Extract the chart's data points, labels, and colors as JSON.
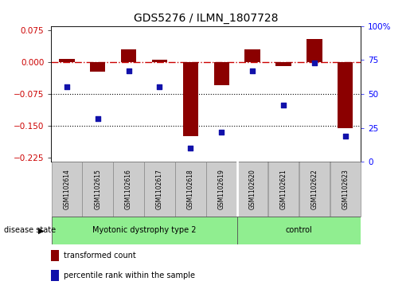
{
  "title": "GDS5276 / ILMN_1807728",
  "samples": [
    "GSM1102614",
    "GSM1102615",
    "GSM1102616",
    "GSM1102617",
    "GSM1102618",
    "GSM1102619",
    "GSM1102620",
    "GSM1102621",
    "GSM1102622",
    "GSM1102623"
  ],
  "red_values": [
    0.008,
    -0.022,
    0.03,
    0.005,
    -0.175,
    -0.055,
    0.03,
    -0.01,
    0.055,
    -0.155
  ],
  "blue_values": [
    55,
    32,
    67,
    55,
    10,
    22,
    67,
    42,
    73,
    19
  ],
  "group1_label": "Myotonic dystrophy type 2",
  "group1_count": 6,
  "group2_label": "control",
  "group2_count": 4,
  "group_color": "#90EE90",
  "ylim_left": [
    -0.235,
    0.085
  ],
  "ylim_right": [
    0,
    100
  ],
  "yticks_left": [
    0.075,
    0,
    -0.075,
    -0.15,
    -0.225
  ],
  "yticks_right": [
    100,
    75,
    50,
    25,
    0
  ],
  "bar_color": "#8B0000",
  "dot_color": "#1111AA",
  "hline_y": 0,
  "dotted_lines": [
    -0.075,
    -0.15
  ],
  "bar_width": 0.5,
  "sample_box_color": "#CCCCCC",
  "ds_label": "disease state",
  "legend_red": "transformed count",
  "legend_blue": "percentile rank within the sample"
}
